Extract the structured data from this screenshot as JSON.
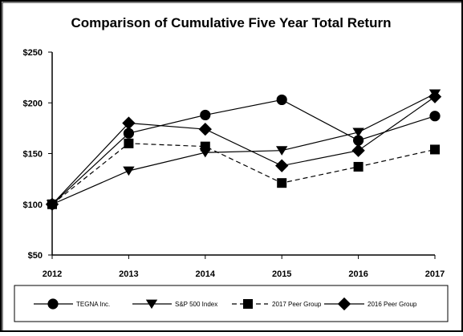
{
  "chart_data": {
    "type": "line",
    "title": "Comparison of Cumulative Five Year Total Return",
    "xlabel": "",
    "ylabel": "",
    "categories": [
      "2012",
      "2013",
      "2014",
      "2015",
      "2016",
      "2017"
    ],
    "y_ticks": [
      "$50",
      "$100",
      "$150",
      "$200",
      "$250"
    ],
    "ylim": [
      50,
      250
    ],
    "grid": false,
    "legend_position": "bottom",
    "series": [
      {
        "name": "TEGNA Inc.",
        "marker": "circle",
        "dash": "solid",
        "values": [
          100,
          170,
          188,
          203,
          163,
          187
        ]
      },
      {
        "name": "S&P 500 Index",
        "marker": "triangle-down",
        "dash": "solid",
        "values": [
          100,
          133,
          151,
          153,
          171,
          209
        ]
      },
      {
        "name": "2017 Peer Group",
        "marker": "square",
        "dash": "dashed",
        "values": [
          100,
          160,
          157,
          121,
          137,
          154
        ]
      },
      {
        "name": "2016 Peer Group",
        "marker": "diamond",
        "dash": "solid",
        "values": [
          100,
          180,
          174,
          138,
          153,
          206
        ]
      }
    ]
  }
}
